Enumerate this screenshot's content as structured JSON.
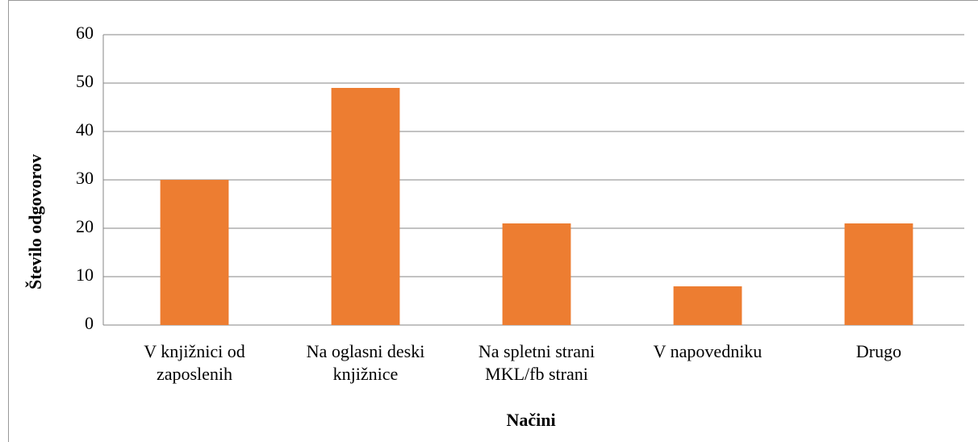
{
  "chart_data": {
    "type": "bar",
    "xlabel": "Načini",
    "ylabel": "Število odgovorov",
    "categories": [
      "V knjižnici od zaposlenih",
      "Na oglasni deski knjižnice",
      "Na spletni strani MKL/fb strani",
      "V napovedniku",
      "Drugo"
    ],
    "values": [
      30,
      49,
      21,
      8,
      21
    ],
    "color": "#ed7d31",
    "ylim": [
      0,
      60
    ],
    "yticks": [
      0,
      10,
      20,
      30,
      40,
      50,
      60
    ],
    "grid": true
  }
}
